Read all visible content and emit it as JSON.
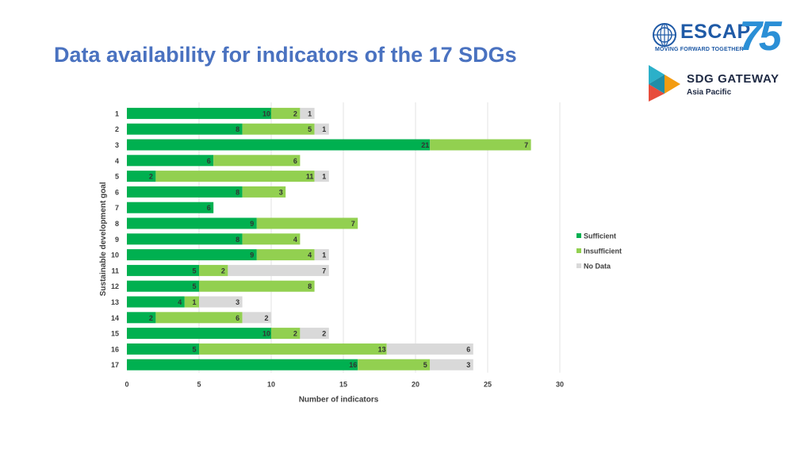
{
  "header": {
    "title": "Data availability for indicators of the 17 SDGs"
  },
  "logos": {
    "escap_word": "ESCAP",
    "escap_tagline": "MOVING FORWARD TOGETHER",
    "escap_anniversary": "75",
    "sdg_gateway_word": "SDG GATEWAY",
    "sdg_gateway_sub": "Asia Pacific"
  },
  "colors": {
    "sufficient": "#00b050",
    "insufficient": "#92d050",
    "no_data": "#d9d9d9",
    "title": "#4a72c0",
    "axis_text": "#404040",
    "grid": "#e3e3e3"
  },
  "chart_data": {
    "type": "bar",
    "orientation": "horizontal",
    "stacked": true,
    "title": "",
    "xlabel": "Number of indicators",
    "ylabel": "Sustainable development goal",
    "xlim": [
      0,
      30
    ],
    "xticks": [
      0,
      5,
      10,
      15,
      20,
      25,
      30
    ],
    "grid": true,
    "legend_position": "right",
    "categories": [
      "1",
      "2",
      "3",
      "4",
      "5",
      "6",
      "7",
      "8",
      "9",
      "10",
      "11",
      "12",
      "13",
      "14",
      "15",
      "16",
      "17"
    ],
    "series": [
      {
        "name": "Sufficient",
        "color": "#00b050",
        "values": [
          10,
          8,
          21,
          6,
          2,
          8,
          6,
          9,
          8,
          9,
          5,
          5,
          4,
          2,
          10,
          5,
          16
        ]
      },
      {
        "name": "Insufficient",
        "color": "#92d050",
        "values": [
          2,
          5,
          7,
          6,
          11,
          3,
          0,
          7,
          4,
          4,
          2,
          8,
          1,
          6,
          2,
          13,
          5
        ]
      },
      {
        "name": "No Data",
        "color": "#d9d9d9",
        "values": [
          1,
          1,
          0,
          0,
          1,
          0,
          0,
          0,
          0,
          1,
          7,
          0,
          3,
          2,
          2,
          6,
          3
        ]
      }
    ]
  }
}
